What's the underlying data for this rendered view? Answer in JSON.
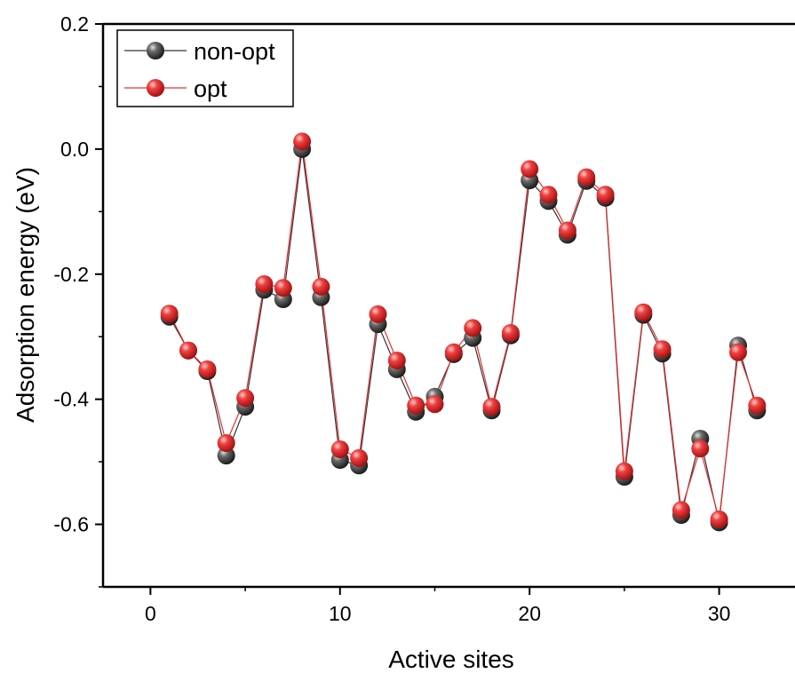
{
  "chart_data": {
    "type": "line",
    "xlabel": "Active sites",
    "ylabel": "Adsorption energy (eV)",
    "xlim": [
      -2.5,
      34
    ],
    "ylim": [
      -0.7,
      0.2
    ],
    "xticks": [
      0,
      10,
      20,
      30
    ],
    "yticks": [
      0.2,
      0.0,
      -0.2,
      -0.4,
      -0.6
    ],
    "ytick_labels": [
      "0.2",
      "0.0",
      "-0.2",
      "-0.4",
      "-0.6"
    ],
    "xtick_labels": [
      "0",
      "10",
      "20",
      "30"
    ],
    "grid": false,
    "legend_position": "top-left",
    "x": [
      1,
      2,
      3,
      4,
      5,
      6,
      7,
      8,
      9,
      10,
      11,
      12,
      13,
      14,
      15,
      16,
      17,
      18,
      19,
      20,
      21,
      22,
      23,
      24,
      25,
      26,
      27,
      28,
      29,
      30,
      31,
      32
    ],
    "series": [
      {
        "name": "non-opt",
        "color": "#333333",
        "values": [
          -0.268,
          -0.322,
          -0.355,
          -0.49,
          -0.412,
          -0.225,
          -0.24,
          0.0,
          -0.237,
          -0.497,
          -0.506,
          -0.28,
          -0.352,
          -0.42,
          -0.396,
          -0.328,
          -0.302,
          -0.418,
          -0.298,
          -0.05,
          -0.083,
          -0.137,
          -0.051,
          -0.078,
          -0.524,
          -0.265,
          -0.327,
          -0.585,
          -0.463,
          -0.597,
          -0.314,
          -0.418
        ]
      },
      {
        "name": "opt",
        "color": "#e53030",
        "values": [
          -0.263,
          -0.322,
          -0.352,
          -0.47,
          -0.398,
          -0.216,
          -0.222,
          0.012,
          -0.22,
          -0.48,
          -0.494,
          -0.264,
          -0.338,
          -0.41,
          -0.408,
          -0.325,
          -0.286,
          -0.412,
          -0.294,
          -0.032,
          -0.073,
          -0.13,
          -0.045,
          -0.073,
          -0.515,
          -0.261,
          -0.32,
          -0.577,
          -0.479,
          -0.592,
          -0.325,
          -0.41
        ]
      }
    ]
  }
}
